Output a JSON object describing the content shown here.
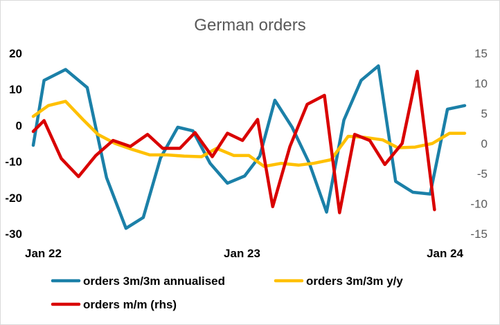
{
  "chart_data": {
    "type": "line",
    "title": "German orders",
    "x": [
      "2022-01",
      "2022-02",
      "2022-03",
      "2022-04",
      "2022-05",
      "2022-06",
      "2022-07",
      "2022-08",
      "2022-09",
      "2022-10",
      "2022-11",
      "2022-12",
      "2023-01",
      "2023-02",
      "2023-03",
      "2023-04",
      "2023-05",
      "2023-06",
      "2023-07",
      "2023-08",
      "2023-09",
      "2023-10",
      "2023-11",
      "2023-12",
      "2024-01"
    ],
    "x_tick_labels": [
      "Jan 22",
      "Jan 23",
      "Jan 24"
    ],
    "left_axis": {
      "ylim": [
        -30,
        20
      ],
      "ticks": [
        20,
        10,
        0,
        -10,
        -20,
        -30
      ]
    },
    "right_axis": {
      "ylim": [
        -15,
        15
      ],
      "ticks": [
        15,
        10,
        5,
        0,
        -5,
        -10,
        -15
      ]
    },
    "grid": false,
    "legend_position": "bottom",
    "series": [
      {
        "name": "orders 3m/3m annualised",
        "axis": "left",
        "color": "#1b80a8",
        "points": [
          [
            0,
            -5.5
          ],
          [
            0.5,
            12.5
          ],
          [
            1.5,
            15.5
          ],
          [
            2.5,
            10.5
          ],
          [
            3.4,
            -14.5
          ],
          [
            4.3,
            -28.5
          ],
          [
            5.1,
            -25.5
          ],
          [
            5.9,
            -9.0
          ],
          [
            6.7,
            -0.5
          ],
          [
            7.4,
            -1.5
          ],
          [
            8.2,
            -10.5
          ],
          [
            9.0,
            -16.0
          ],
          [
            9.8,
            -14.0
          ],
          [
            10.5,
            -8.5
          ],
          [
            11.2,
            7.0
          ],
          [
            12.0,
            -0.5
          ],
          [
            12.8,
            -10.5
          ],
          [
            13.6,
            -24.0
          ],
          [
            14.4,
            1.5
          ],
          [
            15.2,
            12.5
          ],
          [
            16.0,
            16.5
          ],
          [
            16.8,
            -15.5
          ],
          [
            17.6,
            -18.5
          ],
          [
            18.4,
            -19.0
          ],
          [
            19.2,
            4.5
          ],
          [
            20.0,
            5.5
          ]
        ]
      },
      {
        "name": "orders 3m/3m y/y",
        "axis": "right",
        "color": "#ffc000",
        "points": [
          [
            0,
            4.5
          ],
          [
            0.7,
            6.3
          ],
          [
            1.5,
            7.0
          ],
          [
            2.3,
            4.0
          ],
          [
            3.0,
            1.5
          ],
          [
            3.8,
            0.0
          ],
          [
            4.6,
            -1.0
          ],
          [
            5.4,
            -1.9
          ],
          [
            6.2,
            -1.9
          ],
          [
            7.0,
            -2.1
          ],
          [
            7.8,
            -2.2
          ],
          [
            8.5,
            -0.8
          ],
          [
            9.3,
            -2.0
          ],
          [
            10.0,
            -2.0
          ],
          [
            10.7,
            -3.8
          ],
          [
            11.5,
            -3.3
          ],
          [
            12.3,
            -3.6
          ],
          [
            13.0,
            -3.3
          ],
          [
            13.8,
            -2.7
          ],
          [
            14.6,
            1.2
          ],
          [
            15.4,
            1.0
          ],
          [
            16.2,
            0.6
          ],
          [
            16.9,
            -0.7
          ],
          [
            17.7,
            -0.6
          ],
          [
            18.5,
            0.0
          ],
          [
            19.3,
            1.7
          ],
          [
            20.0,
            1.7
          ]
        ]
      },
      {
        "name": "orders m/m (rhs)",
        "axis": "right",
        "color": "#d90000",
        "points": [
          [
            0,
            2.0
          ],
          [
            0.5,
            3.8
          ],
          [
            1.3,
            -2.5
          ],
          [
            2.1,
            -5.5
          ],
          [
            2.9,
            -2.0
          ],
          [
            3.7,
            0.5
          ],
          [
            4.5,
            -0.5
          ],
          [
            5.3,
            1.5
          ],
          [
            6.0,
            -0.8
          ],
          [
            6.8,
            -0.8
          ],
          [
            7.5,
            1.8
          ],
          [
            8.3,
            -2.2
          ],
          [
            9.0,
            1.7
          ],
          [
            9.7,
            0.5
          ],
          [
            10.4,
            4.0
          ],
          [
            11.1,
            -10.5
          ],
          [
            11.9,
            -0.5
          ],
          [
            12.7,
            6.5
          ],
          [
            13.5,
            8.0
          ],
          [
            14.2,
            -11.5
          ],
          [
            14.9,
            1.5
          ],
          [
            15.6,
            0.5
          ],
          [
            16.3,
            -3.5
          ],
          [
            17.1,
            0.0
          ],
          [
            17.8,
            12.0
          ],
          [
            18.6,
            -11.0
          ]
        ]
      }
    ]
  }
}
